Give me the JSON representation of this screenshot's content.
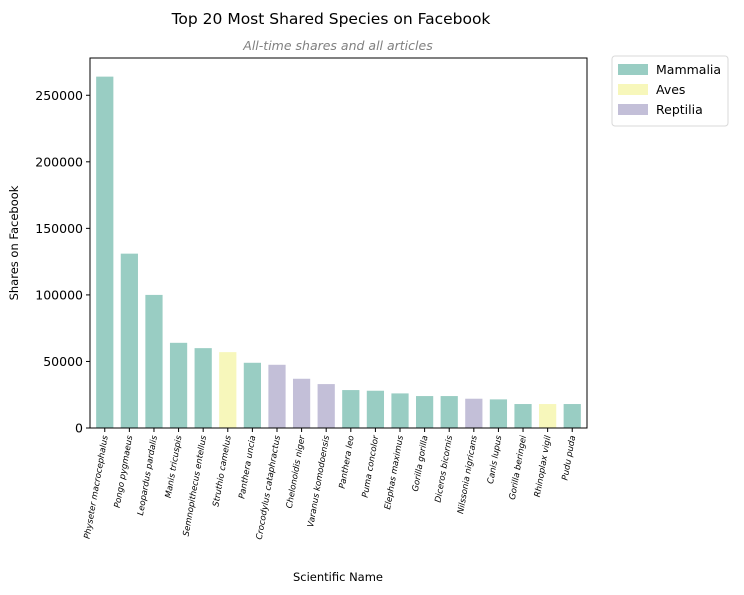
{
  "chart_data": {
    "type": "bar",
    "title": "Top 20 Most Shared Species on Facebook",
    "subtitle": "All-time shares and all articles",
    "xlabel": "Scientific Name",
    "ylabel": "Shares on Facebook",
    "ylim": [
      0,
      278000
    ],
    "yticks": [
      0,
      50000,
      100000,
      150000,
      200000,
      250000
    ],
    "grid": false,
    "legend_position": "outside-top-right",
    "categories": [
      "Physeter macrocephalus",
      "Pongo pygmaeus",
      "Leopardus pardalis",
      "Manis tricuspis",
      "Semnopithecus entellus",
      "Struthio camelus",
      "Panthera uncia",
      "Crocodylus cataphractus",
      "Chelonoidis niger",
      "Varanus komodoensis",
      "Panthera leo",
      "Puma concolor",
      "Elephas maximus",
      "Gorilla gorilla",
      "Diceros bicornis",
      "Nilssonia nigricans",
      "Canis lupus",
      "Gorilla beringei",
      "Rhinoplax vigil",
      "Pudu puda"
    ],
    "values": [
      264000,
      131000,
      100000,
      64000,
      60000,
      57000,
      49000,
      47500,
      37000,
      33000,
      28500,
      28000,
      26000,
      24000,
      24000,
      22000,
      21500,
      18000,
      18000,
      18000
    ],
    "groups": [
      "Mammalia",
      "Mammalia",
      "Mammalia",
      "Mammalia",
      "Mammalia",
      "Aves",
      "Mammalia",
      "Reptilia",
      "Reptilia",
      "Reptilia",
      "Mammalia",
      "Mammalia",
      "Mammalia",
      "Mammalia",
      "Mammalia",
      "Reptilia",
      "Mammalia",
      "Mammalia",
      "Aves",
      "Mammalia"
    ],
    "legend": [
      {
        "name": "Mammalia",
        "color": "#99cdc3"
      },
      {
        "name": "Aves",
        "color": "#f7f7bb"
      },
      {
        "name": "Reptilia",
        "color": "#c3bfd8"
      }
    ]
  }
}
